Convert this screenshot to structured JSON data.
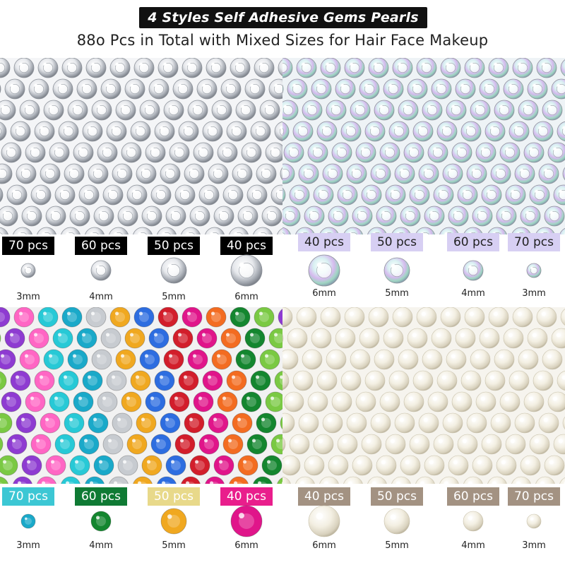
{
  "header": {
    "title": "4 Styles Self Adhesive Gems Pearls",
    "subtitle": "88o Pcs in Total with Mixed Sizes for Hair Face Makeup"
  },
  "colors": {
    "title_bg": "#111111",
    "clear_badge_bg": "#000000",
    "ab_badge_bg": "#cfc6ef",
    "pearl_badge_bg": "#a39282"
  },
  "sections": [
    {
      "id": "clear",
      "panel": "clear-rhinestones-photo",
      "items": [
        {
          "count": "70 pcs",
          "size": "3mm",
          "badge_bg": "#000000",
          "badge_fg": "#ffffff",
          "gem": "clear"
        },
        {
          "count": "60 pcs",
          "size": "4mm",
          "badge_bg": "#000000",
          "badge_fg": "#ffffff",
          "gem": "clear"
        },
        {
          "count": "50 pcs",
          "size": "5mm",
          "badge_bg": "#000000",
          "badge_fg": "#ffffff",
          "gem": "clear"
        },
        {
          "count": "40 pcs",
          "size": "6mm",
          "badge_bg": "#000000",
          "badge_fg": "#ffffff",
          "gem": "clear"
        }
      ]
    },
    {
      "id": "ab",
      "panel": "ab-rhinestones-photo",
      "items": [
        {
          "count": "40 pcs",
          "size": "6mm",
          "badge_bg": "#d7cff3",
          "badge_fg": "#222222",
          "gem": "ab"
        },
        {
          "count": "50 pcs",
          "size": "5mm",
          "badge_bg": "#d7cff3",
          "badge_fg": "#222222",
          "gem": "ab"
        },
        {
          "count": "60 pcs",
          "size": "4mm",
          "badge_bg": "#d7cff3",
          "badge_fg": "#222222",
          "gem": "ab"
        },
        {
          "count": "70 pcs",
          "size": "3mm",
          "badge_bg": "#d7cff3",
          "badge_fg": "#222222",
          "gem": "ab"
        }
      ]
    },
    {
      "id": "colorful",
      "panel": "colorful-rhinestones-photo",
      "items": [
        {
          "count": "70 pcs",
          "size": "3mm",
          "badge_bg": "#3cc7d4",
          "badge_fg": "#ffffff",
          "gem": "#1aa9c9"
        },
        {
          "count": "60 pcs",
          "size": "4mm",
          "badge_bg": "#0f7a34",
          "badge_fg": "#ffffff",
          "gem": "#14862f"
        },
        {
          "count": "50 pcs",
          "size": "5mm",
          "badge_bg": "#e8d98a",
          "badge_fg": "#ffffff",
          "gem": "#f0a820"
        },
        {
          "count": "40 pcs",
          "size": "6mm",
          "badge_bg": "#e91e8c",
          "badge_fg": "#ffffff",
          "gem": "#e0158a"
        }
      ]
    },
    {
      "id": "pearl",
      "panel": "pearl-beads-photo",
      "items": [
        {
          "count": "40 pcs",
          "size": "6mm",
          "badge_bg": "#a39282",
          "badge_fg": "#ffffff",
          "gem": "pearl"
        },
        {
          "count": "50 pcs",
          "size": "5mm",
          "badge_bg": "#a39282",
          "badge_fg": "#ffffff",
          "gem": "pearl"
        },
        {
          "count": "60 pcs",
          "size": "4mm",
          "badge_bg": "#a39282",
          "badge_fg": "#ffffff",
          "gem": "pearl"
        },
        {
          "count": "70 pcs",
          "size": "3mm",
          "badge_bg": "#a39282",
          "badge_fg": "#ffffff",
          "gem": "pearl"
        }
      ]
    }
  ]
}
